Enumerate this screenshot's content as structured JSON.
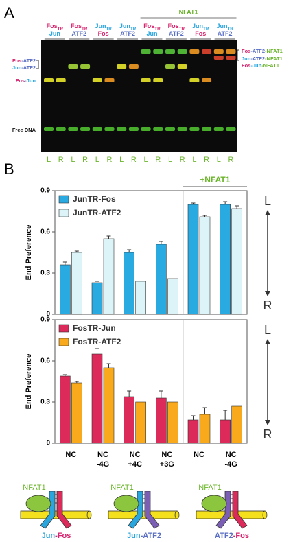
{
  "panel_labels": [
    "A",
    "B"
  ],
  "gel": {
    "nfat_label": "NFAT1",
    "lanes": [
      {
        "top": [
          {
            "text": "Fos",
            "color": "#d6246e"
          },
          {
            "text": "TR",
            "color": "#d6246e",
            "sub": true
          }
        ],
        "bottom": [
          {
            "text": "Jun",
            "color": "#2aa6df"
          }
        ]
      },
      {
        "top": [
          {
            "text": "Fos",
            "color": "#d6246e"
          },
          {
            "text": "TR",
            "color": "#d6246e",
            "sub": true
          }
        ],
        "bottom": [
          {
            "text": "ATF2",
            "color": "#5a6fc4"
          }
        ]
      },
      {
        "top": [
          {
            "text": "Jun",
            "color": "#2aa6df"
          },
          {
            "text": "TR",
            "color": "#2aa6df",
            "sub": true
          }
        ],
        "bottom": [
          {
            "text": "Fos",
            "color": "#d6246e"
          }
        ]
      },
      {
        "top": [
          {
            "text": "Jun",
            "color": "#2aa6df"
          },
          {
            "text": "TR",
            "color": "#2aa6df",
            "sub": true
          }
        ],
        "bottom": [
          {
            "text": "ATF2",
            "color": "#5a6fc4"
          }
        ]
      },
      {
        "top": [
          {
            "text": "Fos",
            "color": "#d6246e"
          },
          {
            "text": "TR",
            "color": "#d6246e",
            "sub": true
          }
        ],
        "bottom": [
          {
            "text": "Jun",
            "color": "#2aa6df"
          }
        ]
      },
      {
        "top": [
          {
            "text": "Fos",
            "color": "#d6246e"
          },
          {
            "text": "TR",
            "color": "#d6246e",
            "sub": true
          }
        ],
        "bottom": [
          {
            "text": "ATF2",
            "color": "#5a6fc4"
          }
        ]
      },
      {
        "top": [
          {
            "text": "Jun",
            "color": "#2aa6df"
          },
          {
            "text": "TR",
            "color": "#2aa6df",
            "sub": true
          }
        ],
        "bottom": [
          {
            "text": "Fos",
            "color": "#d6246e"
          }
        ]
      },
      {
        "top": [
          {
            "text": "Jun",
            "color": "#2aa6df"
          },
          {
            "text": "TR",
            "color": "#2aa6df",
            "sub": true
          }
        ],
        "bottom": [
          {
            "text": "ATF2",
            "color": "#5a6fc4"
          }
        ]
      }
    ],
    "lane_labels": [
      "L",
      "R"
    ],
    "left_labels": [
      [
        {
          "text": "Fos",
          "color": "#d6246e"
        },
        {
          "text": "-ATF2",
          "color": "#5a6fc4"
        }
      ],
      [
        {
          "text": "Jun",
          "color": "#2aa6df"
        },
        {
          "text": "-ATF2",
          "color": "#5a6fc4"
        }
      ],
      [
        {
          "text": "Fos",
          "color": "#d6246e"
        },
        {
          "text": "-Jun",
          "color": "#2aa6df"
        }
      ],
      [
        {
          "text": "Free DNA",
          "color": "#111111"
        }
      ]
    ],
    "right_labels": [
      [
        {
          "text": "Fos",
          "color": "#d6246e"
        },
        {
          "text": "-ATF2",
          "color": "#5a6fc4"
        },
        {
          "text": "-NFAT1",
          "color": "#6cb52d"
        }
      ],
      [
        {
          "text": "Jun",
          "color": "#2aa6df"
        },
        {
          "text": "-ATF2",
          "color": "#5a6fc4"
        },
        {
          "text": "-NFAT1",
          "color": "#6cb52d"
        }
      ],
      [
        {
          "text": "Fos",
          "color": "#d6246e"
        },
        {
          "text": "-Jun",
          "color": "#2aa6df"
        },
        {
          "text": "-NFAT1",
          "color": "#6cb52d"
        }
      ]
    ]
  },
  "chart_data": [
    {
      "type": "bar",
      "ylabel": "End Preference",
      "ylim": [
        0,
        0.9
      ],
      "yticks": [
        0,
        0.3,
        0.6,
        0.9
      ],
      "annotation": "+NFAT1",
      "scale_labels": [
        "L",
        "R"
      ],
      "series": [
        {
          "name": "JunTR-Fos",
          "color": "#29abe2",
          "values": [
            0.36,
            0.23,
            0.45,
            0.51,
            0.8,
            0.8
          ],
          "errors": [
            0.02,
            0.01,
            0.02,
            0.02,
            0.01,
            0.02
          ]
        },
        {
          "name": "JunTR-ATF2",
          "color": "#dcf4f7",
          "values": [
            0.45,
            0.55,
            0.24,
            0.26,
            0.71,
            0.77
          ],
          "errors": [
            0.01,
            0.02,
            null,
            null,
            0.01,
            0.02
          ]
        }
      ]
    },
    {
      "type": "bar",
      "ylabel": "End Preference",
      "ylim": [
        0,
        0.9
      ],
      "yticks": [
        0,
        0.3,
        0.6,
        0.9
      ],
      "scale_labels": [
        "L",
        "R"
      ],
      "categories": [
        "NC",
        "NC\n-4G",
        "NC\n+4C",
        "NC\n+3G",
        "NC",
        "NC\n-4G"
      ],
      "series": [
        {
          "name": "FosTR-Jun",
          "color": "#dc2a5a",
          "values": [
            0.49,
            0.65,
            0.34,
            0.33,
            0.17,
            0.17
          ],
          "errors": [
            0.01,
            0.04,
            0.04,
            0.05,
            0.03,
            0.07
          ]
        },
        {
          "name": "FosTR-ATF2",
          "color": "#f8a91c",
          "values": [
            0.44,
            0.55,
            0.3,
            0.3,
            0.21,
            0.27
          ],
          "errors": [
            0.01,
            0.03,
            null,
            null,
            0.05,
            null
          ]
        }
      ]
    }
  ],
  "diagrams": [
    {
      "protein": "NFAT1",
      "label": [
        {
          "text": "Jun",
          "color": "#2aa6df"
        },
        {
          "text": "-Fos",
          "color": "#d6246e"
        }
      ]
    },
    {
      "protein": "NFAT1",
      "label": [
        {
          "text": "Jun",
          "color": "#2aa6df"
        },
        {
          "text": "-ATF2",
          "color": "#5a6fc4"
        }
      ]
    },
    {
      "protein": "NFAT1",
      "label": [
        {
          "text": "ATF2",
          "color": "#5a6fc4"
        },
        {
          "text": "-Fos",
          "color": "#d6246e"
        }
      ]
    }
  ]
}
